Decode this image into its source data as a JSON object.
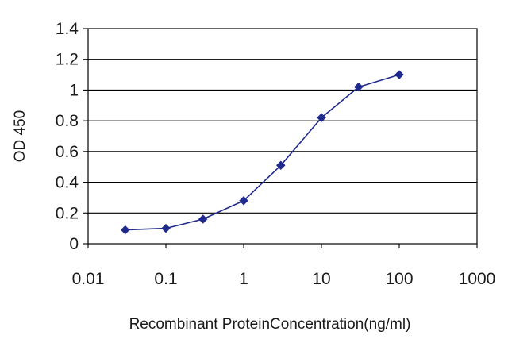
{
  "chart_data": {
    "type": "line",
    "title": "",
    "xlabel": "Recombinant ProteinConcentration(ng/ml)",
    "ylabel": "OD 450",
    "x_scale": "log",
    "xlim": [
      0.01,
      1000
    ],
    "ylim": [
      0,
      1.4
    ],
    "x_ticks": [
      0.01,
      0.1,
      1,
      10,
      100,
      1000
    ],
    "x_tick_labels": [
      "0.01",
      "0.1",
      "1",
      "10",
      "100",
      "1000"
    ],
    "y_ticks": [
      0,
      0.2,
      0.4,
      0.6,
      0.8,
      1,
      1.2,
      1.4
    ],
    "y_tick_labels": [
      "0",
      "0.2",
      "0.4",
      "0.6",
      "0.8",
      "1",
      "1.2",
      "1.4"
    ],
    "grid": "horizontal",
    "legend": "none",
    "series": [
      {
        "color": "#1f2a8c",
        "marker": "diamond",
        "x": [
          0.03,
          0.1,
          0.3,
          1,
          3,
          10,
          30,
          100
        ],
        "y": [
          0.09,
          0.1,
          0.16,
          0.28,
          0.51,
          0.82,
          1.02,
          1.1
        ]
      }
    ]
  }
}
